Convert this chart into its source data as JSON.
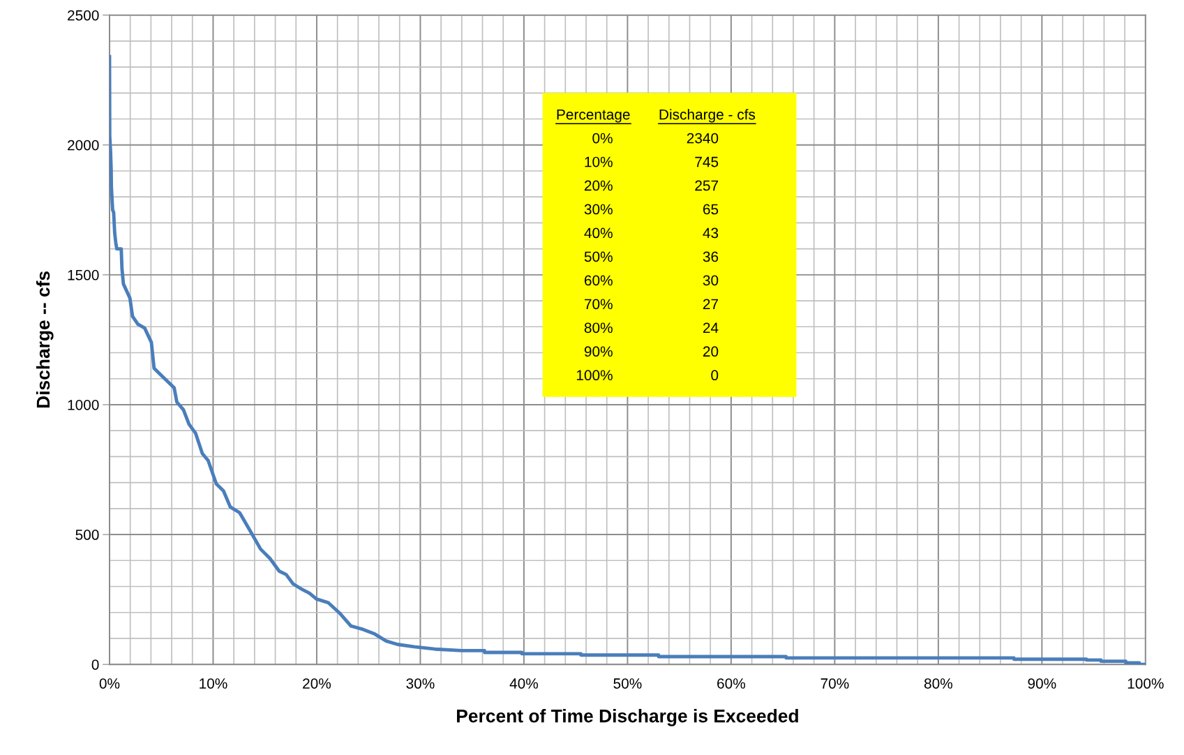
{
  "chart_data": {
    "type": "line",
    "xlabel": "Percent of Time Discharge is Exceeded",
    "ylabel": "Discharge -- cfs",
    "x": [
      0,
      0.02,
      0.1,
      0.16,
      0.18,
      0.3,
      0.4,
      0.5,
      0.6,
      0.7,
      1.13,
      1.2,
      1.34,
      1.97,
      2.22,
      2.74,
      3.39,
      4.04,
      4.3,
      5.07,
      6.24,
      6.5,
      7.14,
      7.67,
      8.31,
      8.96,
      9.52,
      10.31,
      11.0,
      11.66,
      12.56,
      13.68,
      14.58,
      15.48,
      16.38,
      17.05,
      17.72,
      18.62,
      19.3,
      19.97,
      21.1,
      22.2,
      23.3,
      24.46,
      25.6,
      26.7,
      27.8,
      29.4,
      31.4,
      34.0,
      36.2,
      36.2,
      39.8,
      39.8,
      45.5,
      45.5,
      53.0,
      53.0,
      65.3,
      65.3,
      87.3,
      87.3,
      94.3,
      94.3,
      95.7,
      95.7,
      98.1,
      98.1,
      99.4,
      99.4,
      100
    ],
    "series": [
      {
        "color": "#4a7ebb",
        "values": [
          2340,
          2035,
          1975,
          1905,
          1840,
          1750,
          1740,
          1660,
          1625,
          1600,
          1600,
          1525,
          1465,
          1410,
          1340,
          1310,
          1295,
          1240,
          1140,
          1110,
          1065,
          1010,
          980,
          925,
          890,
          812,
          785,
          695,
          668,
          606,
          584,
          507,
          444,
          408,
          359,
          346,
          310,
          288,
          274,
          252,
          238,
          198,
          148,
          135,
          117,
          90,
          77,
          68,
          59,
          53,
          53,
          46,
          46,
          41,
          41,
          36,
          36,
          30,
          30,
          25,
          25,
          20,
          20,
          17,
          17,
          12,
          12,
          6,
          6,
          0,
          0
        ]
      }
    ],
    "xlim": [
      0,
      100
    ],
    "ylim": [
      0,
      2500
    ],
    "xticks": [
      {
        "value": 0,
        "label": "0%"
      },
      {
        "value": 10,
        "label": "10%"
      },
      {
        "value": 20,
        "label": "20%"
      },
      {
        "value": 30,
        "label": "30%"
      },
      {
        "value": 40,
        "label": "40%"
      },
      {
        "value": 50,
        "label": "50%"
      },
      {
        "value": 60,
        "label": "60%"
      },
      {
        "value": 70,
        "label": "70%"
      },
      {
        "value": 80,
        "label": "80%"
      },
      {
        "value": 90,
        "label": "90%"
      },
      {
        "value": 100,
        "label": "100%"
      }
    ],
    "yticks": [
      0,
      500,
      1000,
      1500,
      2000,
      2500
    ],
    "grid": true,
    "marker": "none",
    "line_style": "solid",
    "annotations": [
      "Percentage",
      "Discharge - cfs",
      "0%",
      "2340",
      "10%",
      "745",
      "20%",
      "257",
      "30%",
      "65",
      "40%",
      "43",
      "50%",
      "36",
      "60%",
      "30",
      "70%",
      "27",
      "80%",
      "24",
      "90%",
      "20",
      "100%",
      "0"
    ]
  }
}
